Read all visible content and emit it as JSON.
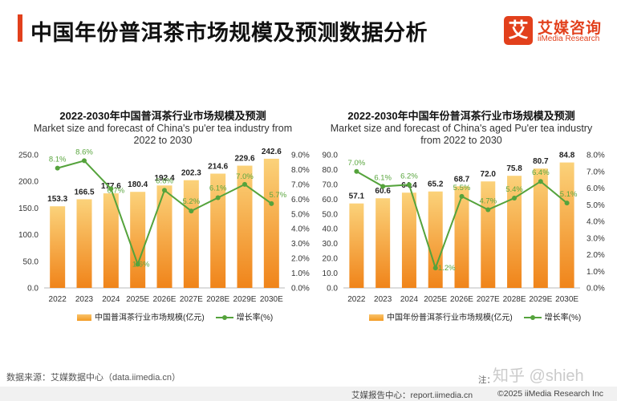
{
  "page": {
    "title": "中国年份普洱茶市场规模及预测数据分析",
    "logo_badge": "艾",
    "logo_cn": "艾媒咨询",
    "logo_en": "iiMedia Research",
    "source": "数据来源：艾媒数据中心（data.iimedia.cn）",
    "note": "注：",
    "watermark": "知乎 @shieh",
    "footer_report": "艾媒报告中心：report.iimedia.cn",
    "footer_copy": "©2025  iiMedia Research  Inc"
  },
  "chart_data": [
    {
      "type": "bar",
      "title": "2022-2030年中国普洱茶行业市场规模及预测",
      "subtitle_lines": [
        "Market size and forecast of China's pu'er tea industry from",
        "2022 to 2030"
      ],
      "categories": [
        "2022",
        "2023",
        "2024",
        "2025E",
        "2026E",
        "2027E",
        "2028E",
        "2029E",
        "2030E"
      ],
      "series": [
        {
          "name": "中国普洱茶行业市场规模(亿元)",
          "type": "bar",
          "axis": "left",
          "values": [
            153.3,
            166.5,
            177.6,
            180.4,
            192.4,
            202.3,
            214.6,
            229.6,
            242.6
          ],
          "labels": [
            "153.3",
            "166.5",
            "177.6",
            "180.4",
            "192.4",
            "202.3",
            "214.6",
            "229.6",
            "242.6"
          ]
        },
        {
          "name": "增长率(%)",
          "type": "line",
          "axis": "right",
          "values": [
            8.1,
            8.6,
            6.7,
            1.6,
            6.6,
            5.2,
            6.1,
            7.0,
            5.7
          ],
          "labels": [
            "8.1%",
            "8.6%",
            "6.7%",
            "1.6%",
            "6.6%",
            "5.2%",
            "6.1%",
            "7.0%",
            "5.7%"
          ]
        }
      ],
      "y_ticks": [
        "0.0",
        "50.0",
        "100.0",
        "150.0",
        "200.0",
        "250.0"
      ],
      "y_ticks_right": [
        "0.0%",
        "1.0%",
        "2.0%",
        "3.0%",
        "4.0%",
        "5.0%",
        "6.0%",
        "7.0%",
        "8.0%",
        "9.0%"
      ],
      "ylim": [
        0,
        250
      ],
      "ylim_right": [
        0,
        9
      ],
      "legend_position": "bottom",
      "colors": {
        "bar_top": "#fbd27a",
        "bar_bottom": "#f0841a",
        "line": "#55a33c",
        "label_line": "#5aa63f"
      }
    },
    {
      "type": "bar",
      "title": "2022-2030年中国年份普洱茶行业市场规模及预测",
      "subtitle_lines": [
        "Market size and forecast of China's aged Pu'er tea industry",
        "from 2022 to 2030"
      ],
      "categories": [
        "2022",
        "2023",
        "2024",
        "2025E",
        "2026E",
        "2027E",
        "2028E",
        "2029E",
        "2030E"
      ],
      "series": [
        {
          "name": "中国年份普洱茶行业市场规模(亿元)",
          "type": "bar",
          "axis": "left",
          "values": [
            57.1,
            60.6,
            64.4,
            65.2,
            68.7,
            72.0,
            75.8,
            80.7,
            84.8
          ],
          "labels": [
            "57.1",
            "60.6",
            "64.4",
            "65.2",
            "68.7",
            "72.0",
            "75.8",
            "80.7",
            "84.8"
          ]
        },
        {
          "name": "增长率(%)",
          "type": "line",
          "axis": "right",
          "values": [
            7.0,
            6.1,
            6.2,
            1.2,
            5.5,
            4.7,
            5.4,
            6.4,
            5.1
          ],
          "labels": [
            "7.0%",
            "6.1%",
            "6.2%",
            "1.2%",
            "5.5%",
            "4.7%",
            "5.4%",
            "6.4%",
            "5.1%"
          ]
        }
      ],
      "y_ticks": [
        "0.0",
        "10.0",
        "20.0",
        "30.0",
        "40.0",
        "50.0",
        "60.0",
        "70.0",
        "80.0",
        "90.0"
      ],
      "y_ticks_right": [
        "0.0%",
        "1.0%",
        "2.0%",
        "3.0%",
        "4.0%",
        "5.0%",
        "6.0%",
        "7.0%",
        "8.0%"
      ],
      "ylim": [
        0,
        90
      ],
      "ylim_right": [
        0,
        8
      ],
      "legend_position": "bottom",
      "colors": {
        "bar_top": "#fbd27a",
        "bar_bottom": "#f0841a",
        "line": "#55a33c",
        "label_line": "#5aa63f"
      }
    }
  ]
}
